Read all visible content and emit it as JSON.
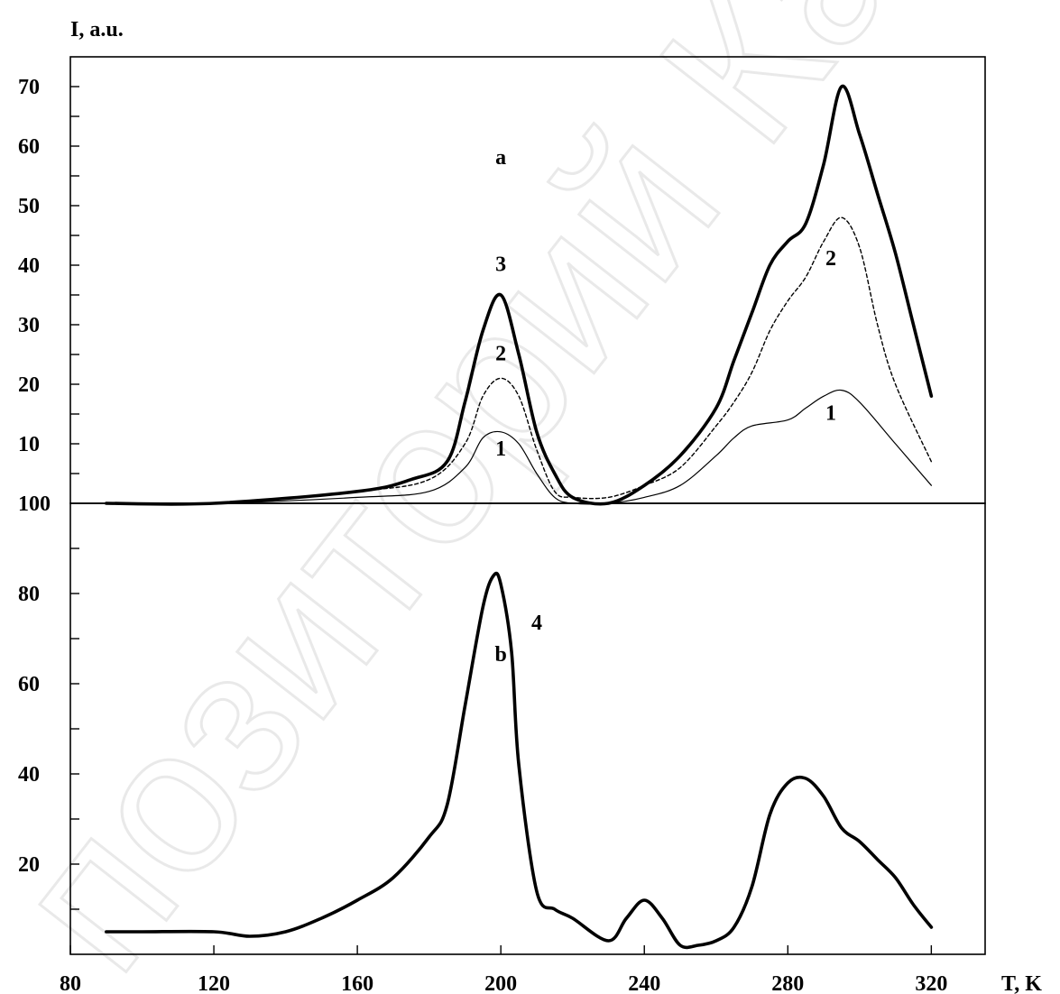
{
  "watermark": "позиторий Карг",
  "chart_data": [
    {
      "panel": "a",
      "type": "line",
      "ylabel": "I, a.u.",
      "xlim": [
        80,
        335
      ],
      "ylim": [
        0,
        75
      ],
      "yticks": [
        10,
        20,
        30,
        40,
        50,
        60,
        70
      ],
      "grid": false,
      "series": [
        {
          "name": "1",
          "style": "thin-solid",
          "x": [
            90,
            120,
            160,
            180,
            190,
            195,
            200,
            205,
            210,
            215,
            220,
            230,
            240,
            250,
            260,
            265,
            270,
            280,
            285,
            290,
            295,
            300,
            310,
            320
          ],
          "y": [
            0,
            0,
            1,
            2,
            6,
            11,
            12,
            10,
            5,
            1,
            0,
            0,
            1,
            3,
            8,
            11,
            13,
            14,
            16,
            18,
            19,
            17,
            10,
            3
          ]
        },
        {
          "name": "2",
          "style": "dashed",
          "x": [
            90,
            120,
            160,
            180,
            190,
            195,
            200,
            205,
            210,
            215,
            220,
            230,
            240,
            250,
            260,
            265,
            270,
            275,
            280,
            285,
            290,
            295,
            300,
            305,
            310,
            320
          ],
          "y": [
            0,
            0,
            2,
            4,
            10,
            18,
            21,
            18,
            9,
            2,
            1,
            1,
            3,
            6,
            13,
            17,
            22,
            29,
            34,
            38,
            44,
            48,
            43,
            30,
            20,
            7
          ]
        },
        {
          "name": "3",
          "style": "thick-solid",
          "x": [
            90,
            120,
            160,
            175,
            185,
            190,
            195,
            200,
            205,
            210,
            215,
            220,
            230,
            240,
            250,
            260,
            265,
            270,
            275,
            280,
            285,
            290,
            295,
            300,
            305,
            310,
            315,
            320
          ],
          "y": [
            0,
            0,
            2,
            4,
            7,
            17,
            29,
            35,
            25,
            12,
            5,
            1,
            0,
            3,
            8,
            16,
            24,
            32,
            40,
            44,
            47,
            57,
            70,
            62,
            52,
            42,
            30,
            18
          ]
        }
      ],
      "labels": [
        {
          "text": "a",
          "x": 200,
          "y": 57
        },
        {
          "text": "3",
          "x": 200,
          "y": 39
        },
        {
          "text": "2",
          "x": 200,
          "y": 24
        },
        {
          "text": "1",
          "x": 200,
          "y": 8
        },
        {
          "text": "2",
          "x": 292,
          "y": 40
        },
        {
          "text": "1",
          "x": 292,
          "y": 14
        }
      ]
    },
    {
      "panel": "b",
      "type": "line",
      "xlabel": "T, K",
      "xlim": [
        80,
        335
      ],
      "ylim": [
        0,
        100
      ],
      "yticks": [
        20,
        40,
        60,
        80,
        100
      ],
      "xticks": [
        80,
        120,
        160,
        200,
        240,
        280,
        320
      ],
      "grid": false,
      "series": [
        {
          "name": "4",
          "style": "thick-solid",
          "x": [
            90,
            100,
            120,
            130,
            140,
            150,
            160,
            170,
            180,
            185,
            190,
            195,
            198,
            200,
            203,
            205,
            210,
            215,
            220,
            230,
            235,
            240,
            245,
            250,
            255,
            260,
            265,
            270,
            275,
            280,
            285,
            290,
            295,
            300,
            305,
            310,
            315,
            320
          ],
          "y": [
            5,
            5,
            5,
            4,
            5,
            8,
            12,
            17,
            26,
            33,
            55,
            77,
            84,
            82,
            67,
            42,
            14,
            10,
            8,
            3,
            8,
            12,
            8,
            2,
            2,
            3,
            6,
            15,
            31,
            38,
            39,
            35,
            28,
            25,
            21,
            17,
            11,
            6
          ]
        }
      ],
      "labels": [
        {
          "text": "b",
          "x": 200,
          "y": 65
        },
        {
          "text": "4",
          "x": 210,
          "y": 72
        }
      ]
    }
  ]
}
